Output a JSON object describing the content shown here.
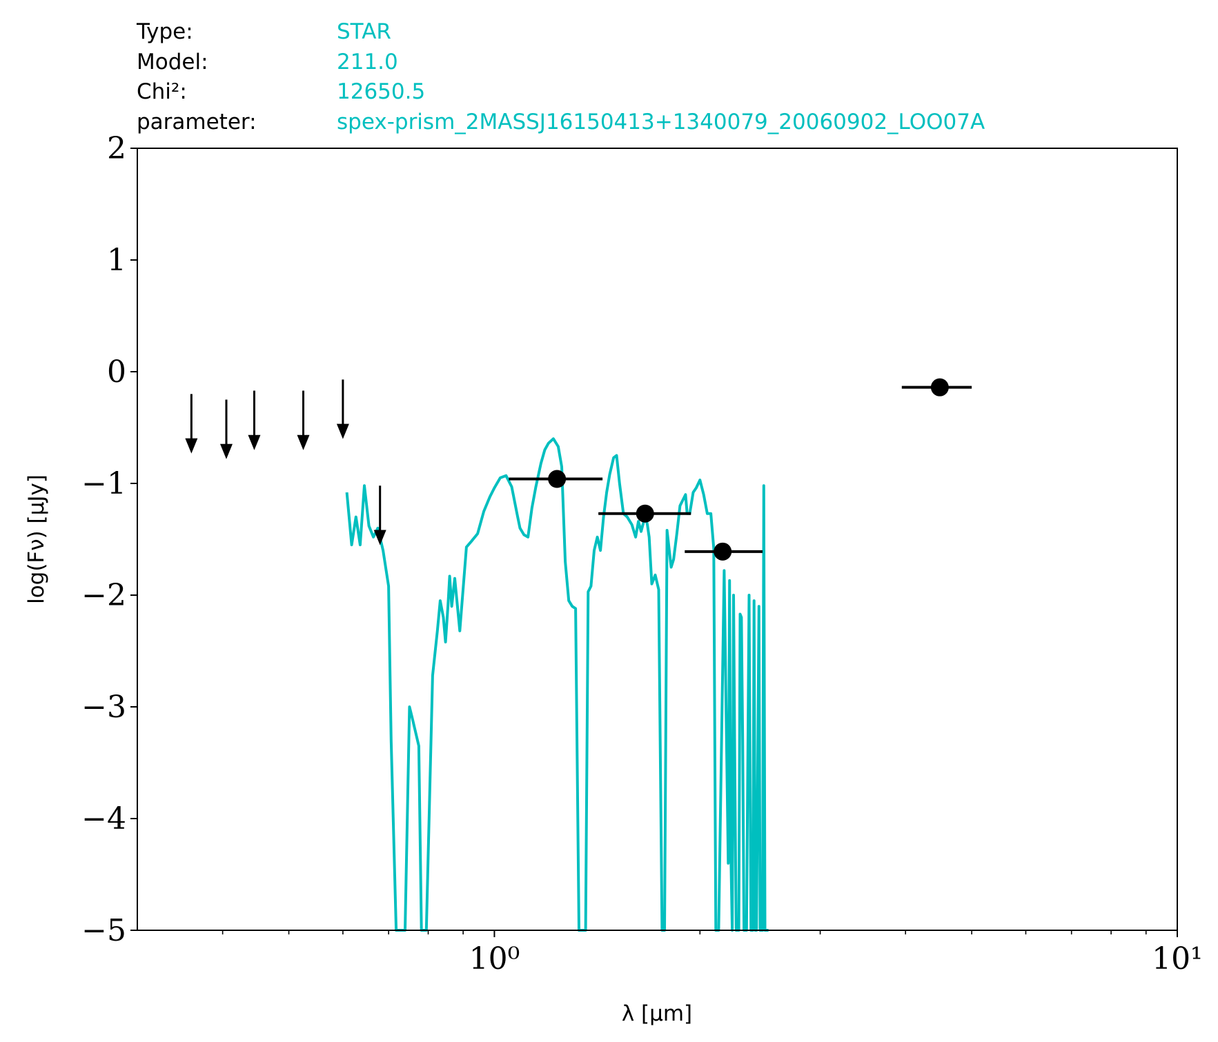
{
  "info": {
    "rows": [
      {
        "label": "Type:",
        "value": "STAR"
      },
      {
        "label": "Model:",
        "value": "211.0"
      },
      {
        "label": "Chi²:",
        "value": "12650.5"
      },
      {
        "label": "parameter:",
        "value": "spex-prism_2MASSJ16150413+1340079_20060902_LOO07A"
      }
    ],
    "value_color": "#00bfbf"
  },
  "chart_data": {
    "type": "line",
    "title": "",
    "xlabel": "λ [μm]",
    "ylabel": "log(Fν) [μJy]",
    "xscale": "log",
    "xlim": [
      0.3,
      10
    ],
    "ylim": [
      -5,
      2
    ],
    "y_ticks": [
      2,
      1,
      0,
      -1,
      -2,
      -3,
      -4,
      -5
    ],
    "y_tick_labels": [
      "2",
      "1",
      "0",
      "−1",
      "−2",
      "−3",
      "−4",
      "−5"
    ],
    "x_major_ticks": [
      1,
      10
    ],
    "x_tick_labels": [
      "10⁰",
      "10¹"
    ],
    "x_minor_ticks": [
      0.4,
      0.5,
      0.6,
      0.7,
      0.8,
      0.9,
      2,
      3,
      4,
      5,
      6,
      7,
      8,
      9
    ],
    "grid": false,
    "colors": {
      "model": "#00bfbf",
      "observations": "#000000"
    },
    "series": [
      {
        "values_x": [
          0.608,
          0.618,
          0.627,
          0.636,
          0.645,
          0.655,
          0.665,
          0.675,
          0.687,
          0.7,
          0.706,
          0.718,
          0.722,
          0.726,
          0.74,
          0.751,
          0.758,
          0.775,
          0.782,
          0.789,
          0.795,
          0.812,
          0.825,
          0.833,
          0.842,
          0.848,
          0.855,
          0.86,
          0.866,
          0.875,
          0.89,
          0.91,
          0.925,
          0.945,
          0.965,
          0.985,
          1.0,
          1.02,
          1.04,
          1.06,
          1.08,
          1.09,
          1.105,
          1.12,
          1.135,
          1.15,
          1.17,
          1.185,
          1.2,
          1.22,
          1.24,
          1.255,
          1.27,
          1.285,
          1.3,
          1.315,
          1.33,
          1.36,
          1.372,
          1.385,
          1.4,
          1.415,
          1.43,
          1.445,
          1.46,
          1.475,
          1.495,
          1.51,
          1.525,
          1.545,
          1.565,
          1.59,
          1.61,
          1.625,
          1.64,
          1.655,
          1.665,
          1.675,
          1.685,
          1.7,
          1.72,
          1.74,
          1.76,
          1.775,
          1.79,
          1.805,
          1.815,
          1.83,
          1.85,
          1.87,
          1.905,
          1.915,
          1.932,
          1.955,
          1.975,
          2.0,
          2.025,
          2.05,
          2.075,
          2.095,
          2.11,
          2.13,
          2.17,
          2.2,
          2.21,
          2.218,
          2.23,
          2.24,
          2.25,
          2.26,
          2.27,
          2.28,
          2.29,
          2.3,
          2.31,
          2.32,
          2.34,
          2.36,
          2.375,
          2.39,
          2.4,
          2.41,
          2.42,
          2.44,
          2.45,
          2.46,
          2.47,
          2.48,
          2.49,
          2.51,
          2.52
        ],
        "values": [
          -1.08,
          -1.55,
          -1.3,
          -1.55,
          -1.02,
          -1.38,
          -1.48,
          -1.4,
          -1.6,
          -1.92,
          -3.3,
          -5.0,
          -5.0,
          -5.0,
          -5.0,
          -3.0,
          -3.1,
          -3.35,
          -5.0,
          -5.0,
          -5.0,
          -2.72,
          -2.32,
          -2.05,
          -2.2,
          -2.42,
          -2.1,
          -1.83,
          -2.1,
          -1.85,
          -2.32,
          -1.57,
          -1.52,
          -1.45,
          -1.25,
          -1.12,
          -1.04,
          -0.95,
          -0.93,
          -1.03,
          -1.28,
          -1.4,
          -1.46,
          -1.48,
          -1.22,
          -1.03,
          -0.82,
          -0.7,
          -0.64,
          -0.6,
          -0.67,
          -0.85,
          -1.7,
          -2.05,
          -2.1,
          -2.12,
          -5.0,
          -5.0,
          -1.97,
          -1.92,
          -1.6,
          -1.48,
          -1.6,
          -1.3,
          -1.08,
          -0.92,
          -0.77,
          -0.75,
          -1.0,
          -1.27,
          -1.3,
          -1.37,
          -1.48,
          -1.34,
          -1.43,
          -1.34,
          -1.3,
          -1.37,
          -1.48,
          -1.9,
          -1.82,
          -1.95,
          -5.0,
          -5.0,
          -1.42,
          -1.62,
          -1.75,
          -1.68,
          -1.45,
          -1.2,
          -1.1,
          -1.27,
          -1.27,
          -1.08,
          -1.04,
          -0.97,
          -1.1,
          -1.27,
          -1.27,
          -1.58,
          -5.0,
          -5.0,
          -1.78,
          -4.4,
          -1.87,
          -4.2,
          -5.0,
          -2.0,
          -3.6,
          -5.0,
          -5.0,
          -5.0,
          -2.17,
          -2.2,
          -3.3,
          -5.0,
          -5.0,
          -2.0,
          -5.0,
          -5.0,
          -2.05,
          -5.0,
          -5.0,
          -2.1,
          -5.0,
          -5.0,
          -5.0,
          -1.02,
          -5.0,
          -5.0,
          -5.0
        ]
      }
    ],
    "detections": [
      {
        "x": 1.235,
        "y": -0.96,
        "x_low": 1.05,
        "x_high": 1.44
      },
      {
        "x": 1.662,
        "y": -1.27,
        "x_low": 1.42,
        "x_high": 1.94
      },
      {
        "x": 2.159,
        "y": -1.61,
        "x_low": 1.9,
        "x_high": 2.47
      },
      {
        "x": 4.49,
        "y": -0.14,
        "x_low": 3.95,
        "x_high": 5.0
      }
    ],
    "upper_limits": [
      {
        "x": 0.36,
        "y": -0.72
      },
      {
        "x": 0.405,
        "y": -0.77
      },
      {
        "x": 0.445,
        "y": -0.69
      },
      {
        "x": 0.525,
        "y": -0.69
      },
      {
        "x": 0.6,
        "y": -0.59
      },
      {
        "x": 0.68,
        "y": -1.54
      }
    ]
  }
}
